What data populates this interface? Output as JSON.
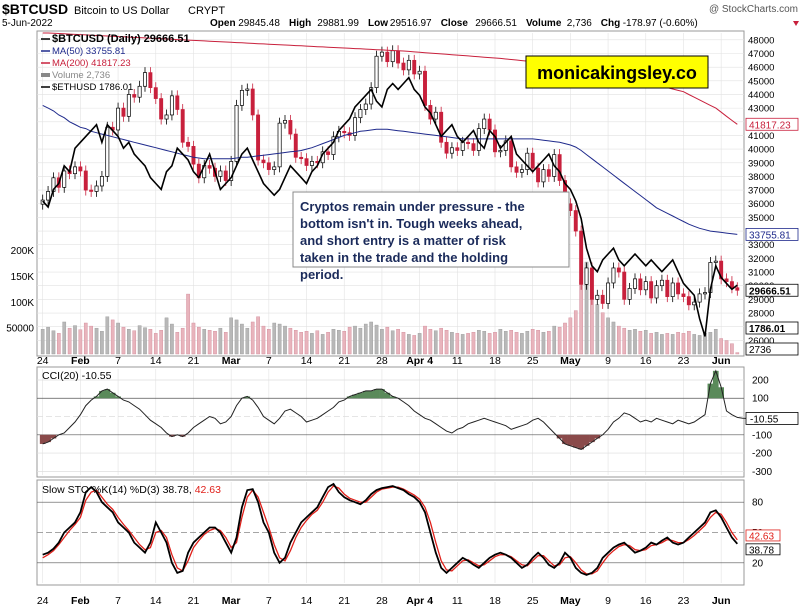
{
  "header": {
    "symbol": "$BTCUSD",
    "name": "Bitcoin to US Dollar",
    "exchange": "CRYPT",
    "date": "5-Jun-2022",
    "copyright": "@ StockCharts.com",
    "stats": [
      {
        "label": "Open",
        "value": "29845.48"
      },
      {
        "label": "High",
        "value": "29881.99"
      },
      {
        "label": "Low",
        "value": "29516.97"
      },
      {
        "label": "Close",
        "value": "29666.51"
      },
      {
        "label": "Volume",
        "value": "2,736"
      },
      {
        "label": "Chg",
        "value": "-178.97 (-0.60%)"
      }
    ]
  },
  "legend": [
    {
      "text": "$BTCUSD (Daily) 29666.51",
      "color": "#000000"
    },
    {
      "text": "MA(50) 33755.81",
      "color": "#1f2a8c"
    },
    {
      "text": "MA(200) 41817.23",
      "color": "#c8203c"
    },
    {
      "text": "Volume 2,736",
      "color": "#888888"
    },
    {
      "text": "$ETHUSD 1786.01",
      "color": "#000000"
    }
  ],
  "watermark_site": "monicakingsley.co",
  "annotation": "Cryptos remain under pressure - the bottom isn't in. Tough weeks ahead, and short entry is a matter of risk taken in the trade and the holding period.",
  "colors": {
    "up": "#ffffff",
    "down": "#c8203c",
    "ma50": "#1f2a8c",
    "ma200": "#c8203c",
    "cci_pos": "#5a8a5a",
    "cci_neg": "#8a4a4a",
    "sto_k": "#000000",
    "sto_d": "#e0201a",
    "volume": "#b8b8b8",
    "volume_down": "#e8b4bc"
  },
  "chart_data": [
    {
      "type": "candlestick",
      "title": "$BTCUSD (Daily) 29666.51",
      "ylim": [
        25000,
        48500
      ],
      "yticks": [
        26000,
        27000,
        28000,
        29000,
        30000,
        31000,
        32000,
        33000,
        34000,
        35000,
        36000,
        37000,
        38000,
        39000,
        40000,
        41000,
        42000,
        43000,
        44000,
        45000,
        46000,
        47000,
        48000
      ],
      "x_tick_labels": [
        "24",
        "Feb",
        "7",
        "14",
        "21",
        "Mar",
        "7",
        "14",
        "21",
        "28",
        "Apr 4",
        "11",
        "18",
        "25",
        "May",
        "9",
        "16",
        "23",
        "Jun"
      ],
      "x_tick_index": [
        0,
        7,
        14,
        21,
        28,
        35,
        42,
        49,
        56,
        63,
        70,
        77,
        84,
        91,
        98,
        105,
        112,
        119,
        126
      ],
      "last_value_labels": [
        {
          "text": "41817.23",
          "value": 41817.23,
          "series": "MA(200)"
        },
        {
          "text": "33755.81",
          "value": 33755.81,
          "series": "MA(50)"
        },
        {
          "text": "29666.51",
          "value": 29666.51,
          "series": "$BTCUSD"
        },
        {
          "text": "2736",
          "value": 2736,
          "series": "Volume"
        },
        {
          "text": "1786.01",
          "value": 1786.01,
          "series": "$ETHUSD"
        }
      ],
      "close": [
        36270,
        36900,
        37900,
        37200,
        38400,
        38200,
        38700,
        38400,
        37000,
        36900,
        37300,
        38000,
        41600,
        41400,
        43000,
        42400,
        44000,
        43800,
        44600,
        45600,
        44500,
        43700,
        42200,
        42500,
        43900,
        42900,
        40500,
        40200,
        38900,
        37900,
        38800,
        38600,
        38000,
        38400,
        37700,
        39100,
        43200,
        44300,
        44400,
        42500,
        39200,
        39000,
        38500,
        38700,
        41900,
        42100,
        41100,
        39400,
        39300,
        38800,
        39100,
        39000,
        39800,
        39600,
        40900,
        41300,
        41200,
        41000,
        42300,
        42900,
        43300,
        44500,
        46800,
        47100,
        46400,
        47200,
        46300,
        45800,
        46500,
        45500,
        45700,
        43200,
        42200,
        42700,
        40500,
        39700,
        40100,
        39900,
        40500,
        40400,
        39900,
        41500,
        42200,
        41400,
        39800,
        39900,
        40600,
        38700,
        38300,
        38500,
        39700,
        38600,
        37600,
        38500,
        38000,
        39600,
        37700,
        36000,
        35500,
        34000,
        30100,
        31300,
        29000,
        29300,
        28700,
        30200,
        31300,
        31000,
        29000,
        29800,
        30500,
        29700,
        30300,
        29100,
        30000,
        30400,
        29200,
        30200,
        29400,
        29200,
        28600,
        28800,
        29400,
        29500,
        31700,
        31800,
        30500,
        30300,
        29850,
        29666
      ],
      "open_offsets_note": "",
      "ma50": [
        43200,
        43000,
        42800,
        42500,
        42300,
        42000,
        41800,
        41600,
        41500,
        41300,
        41200,
        41100,
        41000,
        40900,
        40800,
        40700,
        40600,
        40500,
        40400,
        40300,
        40200,
        40100,
        40000,
        39900,
        39800,
        39700,
        39600,
        39500,
        39400,
        39350,
        39300,
        39300,
        39300,
        39300,
        39300,
        39300,
        39350,
        39400,
        39400,
        39450,
        39500,
        39550,
        39600,
        39650,
        39700,
        39750,
        39800,
        39850,
        39900,
        40000,
        40100,
        40250,
        40400,
        40550,
        40700,
        40850,
        41000,
        41100,
        41200,
        41300,
        41350,
        41400,
        41450,
        41450,
        41450,
        41400,
        41350,
        41300,
        41250,
        41200,
        41150,
        41100,
        41050,
        41000,
        40950,
        40900,
        40850,
        40800,
        40750,
        40750,
        40750,
        40750,
        40750,
        40750,
        40750,
        40750,
        40750,
        40750,
        40750,
        40750,
        40750,
        40750,
        40700,
        40650,
        40600,
        40550,
        40500,
        40400,
        40300,
        40150,
        39900,
        39600,
        39300,
        39000,
        38700,
        38400,
        38100,
        37800,
        37500,
        37200,
        36900,
        36600,
        36300,
        36000,
        35700,
        35500,
        35300,
        35100,
        34900,
        34700,
        34500,
        34350,
        34200,
        34100,
        34000,
        33950,
        33900,
        33850,
        33800,
        33756
      ],
      "ma200": [
        48500,
        48500,
        48480,
        48460,
        48440,
        48420,
        48400,
        48380,
        48360,
        48340,
        48320,
        48300,
        48280,
        48260,
        48240,
        48220,
        48200,
        48180,
        48160,
        48140,
        48120,
        48100,
        48080,
        48060,
        48040,
        48020,
        48000,
        47980,
        47960,
        47940,
        47920,
        47900,
        47880,
        47860,
        47840,
        47820,
        47800,
        47780,
        47760,
        47740,
        47720,
        47700,
        47680,
        47660,
        47640,
        47620,
        47600,
        47580,
        47560,
        47540,
        47520,
        47500,
        47480,
        47460,
        47440,
        47420,
        47400,
        47380,
        47360,
        47340,
        47320,
        47300,
        47280,
        47260,
        47240,
        47220,
        47200,
        47180,
        47150,
        47120,
        47090,
        47060,
        47030,
        47000,
        46970,
        46940,
        46910,
        46880,
        46850,
        46820,
        46790,
        46760,
        46730,
        46700,
        46670,
        46640,
        46600,
        46560,
        46520,
        46480,
        46440,
        46400,
        46360,
        46320,
        46280,
        46240,
        46200,
        46160,
        46120,
        46080,
        46040,
        46000,
        45900,
        45800,
        45700,
        45600,
        45500,
        45400,
        45300,
        45200,
        45100,
        45000,
        44900,
        44800,
        44700,
        44600,
        44500,
        44400,
        44300,
        44200,
        44000,
        43800,
        43600,
        43400,
        43200,
        43000,
        42700,
        42400,
        42100,
        41817
      ],
      "volume": [
        48000,
        52000,
        45000,
        40000,
        62000,
        50000,
        55000,
        47000,
        60000,
        54000,
        50000,
        44000,
        72000,
        66000,
        60000,
        52000,
        48000,
        45000,
        55000,
        51000,
        48000,
        40000,
        46000,
        70000,
        58000,
        42000,
        50000,
        116000,
        60000,
        52000,
        48000,
        46000,
        44000,
        50000,
        42000,
        70000,
        66000,
        58000,
        50000,
        62000,
        72000,
        54000,
        48000,
        60000,
        58000,
        54000,
        50000,
        46000,
        42000,
        44000,
        40000,
        45000,
        38000,
        42000,
        48000,
        46000,
        44000,
        52000,
        54000,
        50000,
        58000,
        62000,
        56000,
        48000,
        52000,
        45000,
        48000,
        42000,
        38000,
        36000,
        40000,
        54000,
        48000,
        45000,
        50000,
        46000,
        42000,
        40000,
        38000,
        40000,
        42000,
        46000,
        44000,
        40000,
        42000,
        48000,
        44000,
        46000,
        42000,
        40000,
        44000,
        48000,
        46000,
        42000,
        44000,
        54000,
        52000,
        60000,
        70000,
        84000,
        145000,
        178000,
        120000,
        96000,
        80000,
        70000,
        62000,
        54000,
        50000,
        46000,
        48000,
        44000,
        46000,
        40000,
        42000,
        38000,
        40000,
        38000,
        42000,
        40000,
        44000,
        38000,
        36000,
        40000,
        42000,
        48000,
        30000,
        26000,
        20000,
        2736
      ],
      "eth": [
        2500,
        2450,
        2600,
        2650,
        2800,
        2750,
        2950,
        3000,
        3050,
        3100,
        3150,
        3000,
        3150,
        3100,
        3050,
        2950,
        3000,
        2900,
        2850,
        2800,
        2700,
        2650,
        2600,
        2750,
        2800,
        2950,
        2900,
        2850,
        2750,
        2700,
        2800,
        2900,
        2750,
        2600,
        2650,
        2700,
        2800,
        2900,
        2950,
        2850,
        2750,
        2650,
        2600,
        2550,
        2600,
        2700,
        2800,
        2750,
        2700,
        2650,
        2750,
        2800,
        2900,
        2950,
        3000,
        3100,
        3150,
        3200,
        3300,
        3350,
        3400,
        3450,
        3350,
        3300,
        3450,
        3500,
        3450,
        3500,
        3550,
        3450,
        3400,
        3300,
        3250,
        3150,
        3050,
        3100,
        3150,
        3050,
        3000,
        3050,
        3100,
        3000,
        2950,
        3100,
        3050,
        2950,
        3000,
        3050,
        2900,
        2850,
        2800,
        2750,
        2800,
        2850,
        2900,
        2800,
        2750,
        2650,
        2600,
        2500,
        2350,
        2100,
        1950,
        1900,
        2000,
        2050,
        2100,
        2000,
        1950,
        2000,
        2050,
        2000,
        1950,
        2000,
        1950,
        1900,
        1950,
        2000,
        1900,
        1800,
        1750,
        1700,
        1500,
        1350,
        1750,
        1950,
        1850,
        1800,
        1750,
        1786
      ]
    },
    {
      "type": "line",
      "title": "CCI(20) -10.55",
      "ylim": [
        -320,
        260
      ],
      "yticks": [
        200,
        100,
        0,
        -100,
        -200,
        -300
      ],
      "ytick_labels": [
        "200",
        "100",
        "",
        "-100",
        "-200",
        "-300"
      ],
      "last_value_label": "-10.55",
      "values": [
        -150,
        -140,
        -120,
        -100,
        -90,
        -60,
        -30,
        10,
        60,
        90,
        110,
        140,
        150,
        130,
        110,
        90,
        80,
        60,
        40,
        10,
        -20,
        -40,
        -60,
        -90,
        -110,
        -100,
        -110,
        -90,
        -60,
        -40,
        -20,
        0,
        -10,
        -40,
        -30,
        0,
        60,
        100,
        110,
        90,
        50,
        0,
        -20,
        -40,
        -10,
        30,
        40,
        20,
        0,
        -30,
        -20,
        -10,
        10,
        30,
        50,
        80,
        90,
        110,
        120,
        130,
        140,
        140,
        150,
        150,
        130,
        110,
        100,
        80,
        60,
        30,
        10,
        -10,
        -20,
        -40,
        -60,
        -80,
        -90,
        -70,
        -60,
        -40,
        -30,
        -20,
        -10,
        -20,
        -30,
        -40,
        -50,
        -70,
        -60,
        -50,
        -40,
        -20,
        -10,
        -30,
        -60,
        -90,
        -120,
        -150,
        -160,
        -170,
        -180,
        -160,
        -140,
        -120,
        -100,
        -70,
        -30,
        -10,
        20,
        10,
        -10,
        -30,
        -20,
        -30,
        -10,
        -20,
        -30,
        -40,
        -20,
        -30,
        -40,
        -30,
        -10,
        10,
        180,
        250,
        160,
        30,
        10,
        -5,
        -10,
        -10.55
      ]
    },
    {
      "type": "line",
      "title": "Slow STO %K(14) %D(3) 38.78, 42.63",
      "ylim": [
        0,
        100
      ],
      "yticks": [
        80,
        50,
        20
      ],
      "last_value_labels": [
        "42.63",
        "38.78"
      ],
      "series": [
        {
          "name": "%K(14)",
          "values": [
            28,
            30,
            34,
            40,
            50,
            55,
            60,
            70,
            90,
            95,
            90,
            80,
            75,
            70,
            60,
            55,
            50,
            40,
            35,
            30,
            40,
            60,
            50,
            40,
            20,
            10,
            12,
            30,
            40,
            45,
            50,
            55,
            55,
            50,
            40,
            30,
            45,
            75,
            92,
            93,
            80,
            60,
            50,
            30,
            20,
            25,
            40,
            50,
            60,
            65,
            70,
            75,
            85,
            95,
            98,
            90,
            85,
            82,
            80,
            78,
            82,
            88,
            92,
            94,
            95,
            96,
            94,
            92,
            88,
            85,
            80,
            70,
            50,
            30,
            15,
            10,
            15,
            20,
            25,
            22,
            18,
            15,
            20,
            25,
            28,
            30,
            28,
            25,
            20,
            15,
            18,
            25,
            30,
            25,
            18,
            15,
            20,
            30,
            25,
            15,
            10,
            8,
            10,
            15,
            25,
            30,
            35,
            38,
            40,
            35,
            30,
            32,
            35,
            40,
            38,
            42,
            45,
            40,
            38,
            40,
            45,
            50,
            55,
            60,
            70,
            72,
            65,
            55,
            45,
            38.78
          ]
        },
        {
          "name": "%D(3)",
          "values": [
            25,
            28,
            32,
            38,
            45,
            52,
            58,
            65,
            82,
            90,
            92,
            85,
            78,
            73,
            65,
            58,
            52,
            45,
            38,
            33,
            35,
            50,
            52,
            45,
            28,
            15,
            12,
            22,
            35,
            42,
            48,
            52,
            54,
            52,
            45,
            35,
            40,
            65,
            85,
            92,
            85,
            70,
            55,
            38,
            25,
            22,
            32,
            45,
            55,
            62,
            68,
            72,
            80,
            90,
            96,
            94,
            88,
            84,
            82,
            80,
            80,
            85,
            90,
            93,
            94,
            95,
            95,
            93,
            90,
            87,
            83,
            75,
            60,
            40,
            22,
            13,
            12,
            17,
            22,
            23,
            20,
            17,
            18,
            22,
            26,
            28,
            28,
            26,
            22,
            18,
            17,
            22,
            27,
            27,
            22,
            17,
            18,
            25,
            26,
            20,
            13,
            9,
            9,
            12,
            20,
            27,
            32,
            36,
            38,
            37,
            33,
            32,
            33,
            37,
            38,
            40,
            43,
            42,
            40,
            40,
            43,
            47,
            52,
            57,
            65,
            70,
            68,
            60,
            50,
            42.63
          ]
        }
      ]
    }
  ]
}
